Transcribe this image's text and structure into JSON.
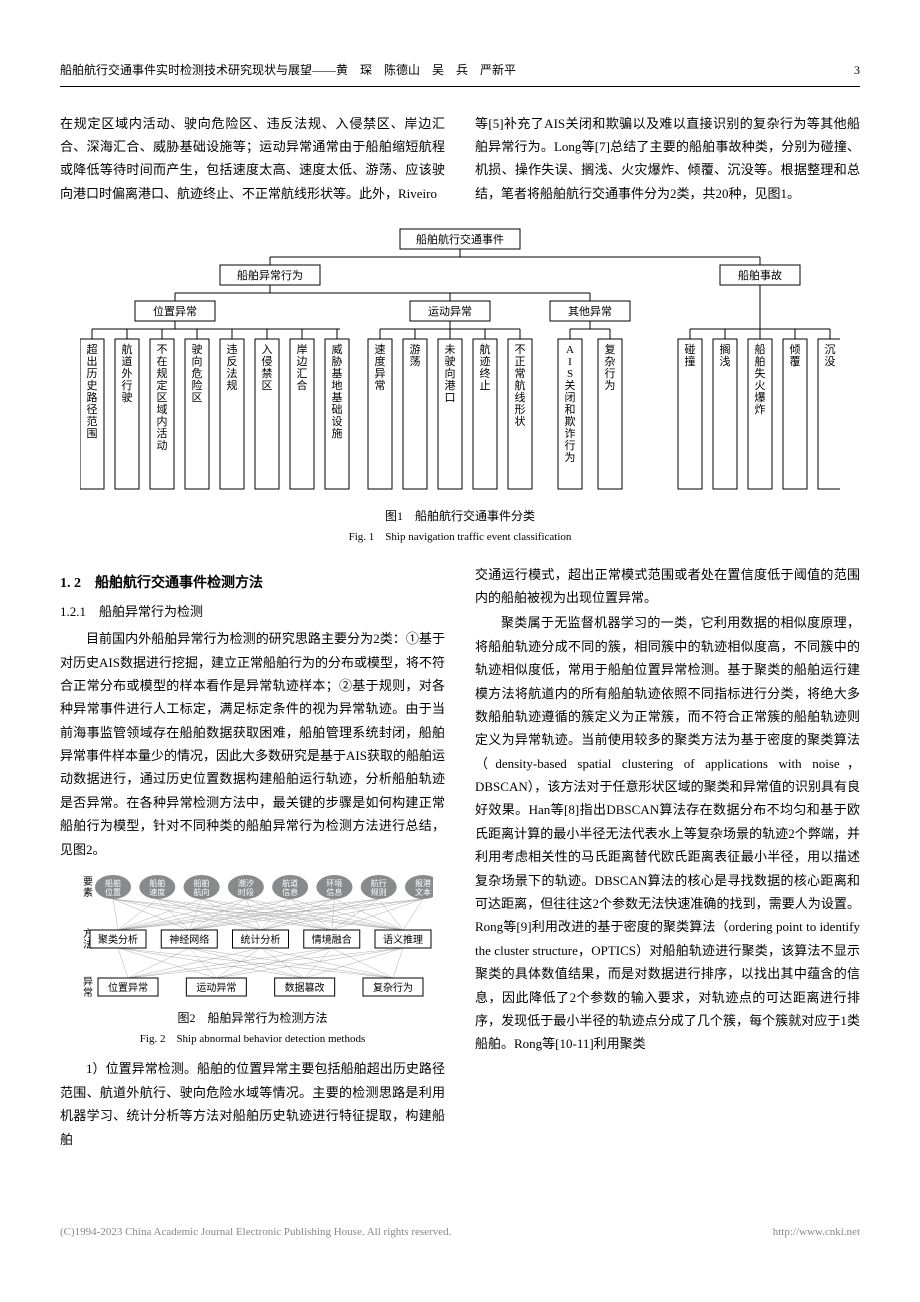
{
  "header": {
    "title": "船舶航行交通事件实时检测技术研究现状与展望——黄　琛　陈德山　吴　兵　严新平",
    "page": "3"
  },
  "intro_left": "在规定区域内活动、驶向危险区、违反法规、入侵禁区、岸边汇合、深海汇合、威胁基础设施等；运动异常通常由于船舶缩短航程或降低等待时间而产生，包括速度太高、速度太低、游荡、应该驶向港口时偏离港口、航迹终止、不正常航线形状等。此外，Riveiro",
  "intro_right": "等[5]补充了AIS关闭和欺骗以及难以直接识别的复杂行为等其他船舶异常行为。Long等[7]总结了主要的船舶事故种类，分别为碰撞、机损、操作失误、搁浅、火灾爆炸、倾覆、沉没等。根据整理和总结，笔者将船舶航行交通事件分为2类，共20种，见图1。",
  "fig1": {
    "root": "船舶航行交通事件",
    "level2": [
      "船舶异常行为",
      "船舶事故"
    ],
    "level3": [
      "位置异常",
      "运动异常",
      "其他异常"
    ],
    "leaves_pos": [
      "超出历史路径范围",
      "航道外行驶",
      "不在规定区域内活动",
      "驶向危险区",
      "违反法规",
      "入侵禁区",
      "岸边汇合",
      "威胁基地基础设施"
    ],
    "leaves_mot": [
      "速度异常",
      "游荡",
      "未驶向港口",
      "航迹终止",
      "不正常航线形状"
    ],
    "leaves_oth": [
      "AIS关闭和欺诈行为",
      "复杂行为"
    ],
    "leaves_acc": [
      "碰撞",
      "搁浅",
      "船舶失火爆炸",
      "倾覆",
      "沉没"
    ],
    "caption_cn": "图1　船舶航行交通事件分类",
    "caption_en": "Fig. 1　Ship navigation traffic event classification",
    "style": {
      "box_stroke": "#000000",
      "box_fill": "#ffffff",
      "line_stroke": "#000000",
      "font_size_cn": 11
    }
  },
  "sec12": "1. 2　船舶航行交通事件检测方法",
  "sec121": "1.2.1　船舶异常行为检测",
  "para_left": "目前国内外船舶异常行为检测的研究思路主要分为2类：①基于对历史AIS数据进行挖掘，建立正常船舶行为的分布或模型，将不符合正常分布或模型的样本看作是异常轨迹样本；②基于规则，对各种异常事件进行人工标定，满足标定条件的视为异常轨迹。由于当前海事监管领域存在船舶数据获取困难，船舶管理系统封闭，船舶异常事件样本量少的情况，因此大多数研究是基于AIS获取的船舶运动数据进行，通过历史位置数据构建船舶运行轨迹，分析船舶轨迹是否异常。在各种异常检测方法中，最关键的步骤是如何构建正常船舶行为模型，针对不同种类的船舶异常行为检测方法进行总结，见图2。",
  "fig2": {
    "row_labels": [
      "要素",
      "方法",
      "异常"
    ],
    "row1": [
      "船舶位置",
      "船舶速度",
      "船舶航向",
      "潮汐时段",
      "航道信息",
      "环境信息",
      "航行规则",
      "报港文本"
    ],
    "row2": [
      "聚类分析",
      "神经网络",
      "统计分析",
      "情境融合",
      "语义推理"
    ],
    "row3": [
      "位置异常",
      "运动异常",
      "数据篡改",
      "复杂行为"
    ],
    "caption_cn": "图2　船舶异常行为检测方法",
    "caption_en": "Fig. 2　Ship abnormal behavior detection methods",
    "style": {
      "ellipse_fill": "#888a8c",
      "rect_stroke": "#000000",
      "line_color": "#999999",
      "text_color_ellipse": "#ffffff",
      "font_size": 9
    }
  },
  "para_left2": "1）位置异常检测。船舶的位置异常主要包括船舶超出历史路径范围、航道外航行、驶向危险水域等情况。主要的检测思路是利用机器学习、统计分析等方法对船舶历史轨迹进行特征提取，构建船舶",
  "para_right1": "交通运行模式，超出正常模式范围或者处在置信度低于阈值的范围内的船舶被视为出现位置异常。",
  "para_right2": "聚类属于无监督机器学习的一类，它利用数据的相似度原理，将船舶轨迹分成不同的簇，相同簇中的轨迹相似度高，不同簇中的轨迹相似度低，常用于船舶位置异常检测。基于聚类的船舶运行建模方法将航道内的所有船舶轨迹依照不同指标进行分类，将绝大多数船舶轨迹遵循的簇定义为正常簇，而不符合正常簇的船舶轨迹则定义为异常轨迹。当前使用较多的聚类方法为基于密度的聚类算法（density-based spatial clustering of applications with noise，DBSCAN），该方法对于任意形状区域的聚类和异常值的识别具有良好效果。Han等[8]指出DBSCAN算法存在数据分布不均匀和基于欧氏距离计算的最小半径无法代表水上等复杂场景的轨迹2个弊端，并利用考虑相关性的马氏距离替代欧氏距离表征最小半径，用以描述复杂场景下的轨迹。DBSCAN算法的核心是寻找数据的核心距离和可达距离，但往往这2个参数无法快速准确的找到，需要人为设置。Rong等[9]利用改进的基于密度的聚类算法（ordering point to identify the cluster structure，OPTICS）对船舶轨迹进行聚类，该算法不显示聚类的具体数值结果，而是对数据进行排序，以找出其中蕴含的信息，因此降低了2个参数的输入要求，对轨迹点的可达距离进行排序，发现低于最小半径的轨迹点分成了几个簇，每个簇就对应于1类船舶。Rong等[10-11]利用聚类",
  "footer": {
    "left": "(C)1994-2023 China Academic Journal Electronic Publishing House. All rights reserved.",
    "right": "http://www.cnki.net"
  }
}
